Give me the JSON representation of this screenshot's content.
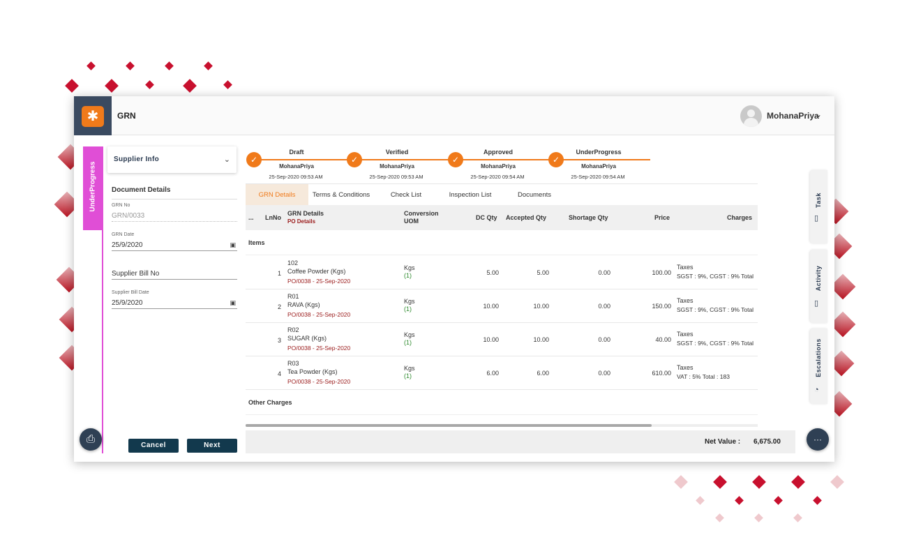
{
  "header": {
    "title": "GRN",
    "username": "MohanaPriya"
  },
  "status": "UnderProgress",
  "left_panel": {
    "accordion_label": "Supplier Info",
    "section_title": "Document Details",
    "grn_no_label": "GRN No",
    "grn_no_value": "GRN/0033",
    "grn_date_label": "GRN Date",
    "grn_date_value": "25/9/2020",
    "supplier_bill_no_label": "Supplier Bill No",
    "supplier_bill_date_label": "Supplier Bill Date",
    "supplier_bill_date_value": "25/9/2020",
    "cancel_label": "Cancel",
    "next_label": "Next"
  },
  "steps": [
    {
      "name": "Draft",
      "user": "MohanaPriya",
      "time": "25-Sep-2020 09:53 AM"
    },
    {
      "name": "Verified",
      "user": "MohanaPriya",
      "time": "25-Sep-2020 09:53 AM"
    },
    {
      "name": "Approved",
      "user": "MohanaPriya",
      "time": "25-Sep-2020 09:54 AM"
    },
    {
      "name": "UnderProgress",
      "user": "MohanaPriya",
      "time": "25-Sep-2020 09:54 AM"
    }
  ],
  "tabs": [
    "GRN Details",
    "Terms & Conditions",
    "Check List",
    "Inspection List",
    "Documents"
  ],
  "table": {
    "headers": {
      "more": "...",
      "lnno": "LnNo",
      "grn_details": "GRN Details",
      "po_details": "PO Details",
      "conversion": "Conversion",
      "uom": "UOM",
      "dc_qty": "DC Qty",
      "accepted_qty": "Accepted Qty",
      "shortage_qty": "Shortage Qty",
      "price": "Price",
      "charges": "Charges"
    },
    "items_label": "Items",
    "other_charges_label": "Other Charges",
    "rows": [
      {
        "ln": "1",
        "code": "102",
        "name": "Coffee Powder (Kgs)",
        "po": "PO/0038  -  25-Sep-2020",
        "uom": "Kgs",
        "conv": "(1)",
        "dc": "5.00",
        "accepted": "5.00",
        "shortage": "0.00",
        "price": "100.00",
        "charges_title": "Taxes",
        "charges_detail": "SGST : 9%, CGST : 9% Total"
      },
      {
        "ln": "2",
        "code": "R01",
        "name": "RAVA (Kgs)",
        "po": "PO/0038  -  25-Sep-2020",
        "uom": "Kgs",
        "conv": "(1)",
        "dc": "10.00",
        "accepted": "10.00",
        "shortage": "0.00",
        "price": "150.00",
        "charges_title": "Taxes",
        "charges_detail": "SGST : 9%, CGST : 9% Total"
      },
      {
        "ln": "3",
        "code": "R02",
        "name": "SUGAR (Kgs)",
        "po": "PO/0038  -  25-Sep-2020",
        "uom": "Kgs",
        "conv": "(1)",
        "dc": "10.00",
        "accepted": "10.00",
        "shortage": "0.00",
        "price": "40.00",
        "charges_title": "Taxes",
        "charges_detail": "SGST : 9%, CGST : 9% Total"
      },
      {
        "ln": "4",
        "code": "R03",
        "name": "Tea Powder (Kgs)",
        "po": "PO/0038  -  25-Sep-2020",
        "uom": "Kgs",
        "conv": "(1)",
        "dc": "6.00",
        "accepted": "6.00",
        "shortage": "0.00",
        "price": "610.00",
        "charges_title": "Taxes",
        "charges_detail": "VAT : 5% Total : 183"
      }
    ]
  },
  "footer": {
    "net_value_label": "Net Value  :",
    "net_value": "6,675.00"
  },
  "side_tabs": [
    "Task",
    "Activity",
    "Escalations"
  ],
  "colors": {
    "accent": "#f07a1a",
    "status": "#e04ed6",
    "primary_button": "#12394d",
    "po_text": "#9a1a1a"
  }
}
